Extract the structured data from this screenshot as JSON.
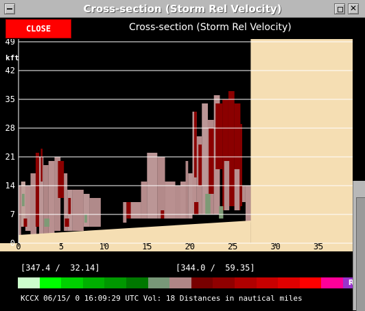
{
  "window": {
    "title": "Cross-section (Storm Rel Velocity)"
  },
  "toolbar": {
    "close_label": "CLOSE",
    "header_label": "Cross-section (Storm Rel Velocity)"
  },
  "chart_data": {
    "type": "heatmap",
    "y_unit_label": "kft",
    "y_ticks": [
      "0",
      "7",
      "14",
      "21",
      "28",
      "35",
      "42",
      "49"
    ],
    "x_ticks": [
      "0",
      "5",
      "10",
      "15",
      "20",
      "25",
      "30",
      "35"
    ],
    "xlim": [
      0,
      39
    ],
    "ylim": [
      0,
      49
    ],
    "data_extent_x": [
      0,
      27.1
    ],
    "grid": true,
    "legend": "bottom",
    "colors": {
      "background": "#000000",
      "no_data": "#f5deb3",
      "ground": "#f5deb3",
      "gridline": "#ffffff"
    },
    "cells": [
      {
        "x0": 0.0,
        "x1": 0.3,
        "y0": 2,
        "y1": 14,
        "c": "#b58a8a"
      },
      {
        "x0": 0.3,
        "x1": 0.8,
        "y0": 4,
        "y1": 15,
        "c": "#c0a09a"
      },
      {
        "x0": 0.4,
        "x1": 0.7,
        "y0": 9,
        "y1": 12,
        "c": "#7e9a76"
      },
      {
        "x0": 0.8,
        "x1": 1.4,
        "y0": 3,
        "y1": 14,
        "c": "#b99090"
      },
      {
        "x0": 1.4,
        "x1": 2.1,
        "y0": 2,
        "y1": 17,
        "c": "#b38a8a"
      },
      {
        "x0": 2.0,
        "x1": 2.4,
        "y0": 4,
        "y1": 22,
        "c": "#8b0000"
      },
      {
        "x0": 2.4,
        "x1": 2.9,
        "y0": 2,
        "y1": 21,
        "c": "#bb9595"
      },
      {
        "x0": 2.6,
        "x1": 2.8,
        "y0": 15,
        "y1": 23,
        "c": "#8b0000"
      },
      {
        "x0": 2.9,
        "x1": 3.5,
        "y0": 2,
        "y1": 19,
        "c": "#b08686"
      },
      {
        "x0": 3.5,
        "x1": 4.2,
        "y0": 2,
        "y1": 20,
        "c": "#b99090"
      },
      {
        "x0": 4.2,
        "x1": 4.9,
        "y0": 3,
        "y1": 21,
        "c": "#b38a8a"
      },
      {
        "x0": 4.6,
        "x1": 5.3,
        "y0": 11,
        "y1": 20,
        "c": "#8b0000"
      },
      {
        "x0": 5.3,
        "x1": 5.7,
        "y0": 3,
        "y1": 17,
        "c": "#b58c8c"
      },
      {
        "x0": 5.7,
        "x1": 6.3,
        "y0": 3,
        "y1": 13,
        "c": "#bb9696"
      },
      {
        "x0": 5.8,
        "x1": 6.1,
        "y0": 7,
        "y1": 11,
        "c": "#8b0000"
      },
      {
        "x0": 6.3,
        "x1": 7.6,
        "y0": 3,
        "y1": 13,
        "c": "#b58c8c"
      },
      {
        "x0": 7.6,
        "x1": 8.3,
        "y0": 4,
        "y1": 12,
        "c": "#bb9696"
      },
      {
        "x0": 8.3,
        "x1": 9.6,
        "y0": 4,
        "y1": 11,
        "c": "#b08a8a"
      },
      {
        "x0": 0.6,
        "x1": 1.0,
        "y0": 4,
        "y1": 6,
        "c": "#8b0000"
      },
      {
        "x0": 3.0,
        "x1": 3.6,
        "y0": 4,
        "y1": 6,
        "c": "#7e9a76"
      },
      {
        "x0": 5.4,
        "x1": 5.9,
        "y0": 4,
        "y1": 6,
        "c": "#8b0000"
      },
      {
        "x0": 7.7,
        "x1": 8.0,
        "y0": 5,
        "y1": 7,
        "c": "#7e9a76"
      },
      {
        "x0": 12.2,
        "x1": 12.6,
        "y0": 5,
        "y1": 10,
        "c": "#b58c8c"
      },
      {
        "x0": 12.6,
        "x1": 13.1,
        "y0": 6,
        "y1": 10,
        "c": "#8b0000"
      },
      {
        "x0": 13.1,
        "x1": 14.3,
        "y0": 6,
        "y1": 10,
        "c": "#b99090"
      },
      {
        "x0": 14.3,
        "x1": 15.0,
        "y0": 6,
        "y1": 15,
        "c": "#b58c8c"
      },
      {
        "x0": 15.0,
        "x1": 16.2,
        "y0": 6,
        "y1": 22,
        "c": "#bb9696"
      },
      {
        "x0": 16.2,
        "x1": 17.1,
        "y0": 6,
        "y1": 21,
        "c": "#b38a8a"
      },
      {
        "x0": 16.6,
        "x1": 17.0,
        "y0": 6,
        "y1": 8,
        "c": "#8b0000"
      },
      {
        "x0": 17.1,
        "x1": 18.3,
        "y0": 6,
        "y1": 15,
        "c": "#b99090"
      },
      {
        "x0": 18.3,
        "x1": 18.9,
        "y0": 6,
        "y1": 14,
        "c": "#b58c8c"
      },
      {
        "x0": 18.9,
        "x1": 19.5,
        "y0": 6,
        "y1": 15,
        "c": "#b99090"
      },
      {
        "x0": 19.5,
        "x1": 19.8,
        "y0": 6,
        "y1": 20,
        "c": "#b08686"
      },
      {
        "x0": 19.8,
        "x1": 20.3,
        "y0": 6,
        "y1": 17,
        "c": "#bb9696"
      },
      {
        "x0": 20.3,
        "x1": 20.8,
        "y0": 7,
        "y1": 32,
        "c": "#b99090"
      },
      {
        "x0": 20.5,
        "x1": 20.8,
        "y0": 16,
        "y1": 32,
        "c": "#8b0000"
      },
      {
        "x0": 20.8,
        "x1": 21.4,
        "y0": 7,
        "y1": 26,
        "c": "#b58c8c"
      },
      {
        "x0": 21.0,
        "x1": 21.4,
        "y0": 14,
        "y1": 24,
        "c": "#8b0000"
      },
      {
        "x0": 21.4,
        "x1": 22.1,
        "y0": 7,
        "y1": 34,
        "c": "#bb9696"
      },
      {
        "x0": 22.1,
        "x1": 22.8,
        "y0": 7,
        "y1": 30,
        "c": "#b38a8a"
      },
      {
        "x0": 22.2,
        "x1": 22.8,
        "y0": 12,
        "y1": 28,
        "c": "#8b0000"
      },
      {
        "x0": 22.8,
        "x1": 23.5,
        "y0": 7,
        "y1": 36,
        "c": "#b99090"
      },
      {
        "x0": 23.0,
        "x1": 23.8,
        "y0": 18,
        "y1": 34,
        "c": "#8b0000"
      },
      {
        "x0": 23.8,
        "x1": 24.5,
        "y0": 8,
        "y1": 35,
        "c": "#8b0000"
      },
      {
        "x0": 24.5,
        "x1": 25.2,
        "y0": 9,
        "y1": 37,
        "c": "#8b0000"
      },
      {
        "x0": 25.2,
        "x1": 25.9,
        "y0": 8,
        "y1": 34,
        "c": "#8b0000"
      },
      {
        "x0": 25.9,
        "x1": 26.1,
        "y0": 9,
        "y1": 29,
        "c": "#8b0000"
      },
      {
        "x0": 26.1,
        "x1": 26.5,
        "y0": 10,
        "y1": 14,
        "c": "#b58c8c"
      },
      {
        "x0": 26.5,
        "x1": 27.1,
        "y0": 5,
        "y1": 14,
        "c": "#b99090"
      },
      {
        "x0": 24.0,
        "x1": 24.6,
        "y0": 8,
        "y1": 20,
        "c": "#b58c8c"
      },
      {
        "x0": 25.2,
        "x1": 25.8,
        "y0": 8,
        "y1": 18,
        "c": "#b99090"
      },
      {
        "x0": 21.8,
        "x1": 22.4,
        "y0": 7,
        "y1": 12,
        "c": "#7e9a76"
      },
      {
        "x0": 23.4,
        "x1": 23.9,
        "y0": 6,
        "y1": 9,
        "c": "#7e9a76"
      },
      {
        "x0": 20.5,
        "x1": 21.0,
        "y0": 7,
        "y1": 10,
        "c": "#8b0000"
      }
    ],
    "ground_start_y": 2,
    "ground_end_y": 5.5
  },
  "coords": {
    "left": "[347.4 /  32.14]",
    "right": "[344.0 /  59.35]"
  },
  "colorbar": {
    "swatches": [
      {
        "color": "#ccffcc",
        "label": ""
      },
      {
        "color": "#00ff00",
        "label": ""
      },
      {
        "color": "#00d000",
        "label": ""
      },
      {
        "color": "#00b000",
        "label": ""
      },
      {
        "color": "#009800",
        "label": ""
      },
      {
        "color": "#007800",
        "label": ""
      },
      {
        "color": "#789878",
        "label": ""
      },
      {
        "color": "#b08686",
        "label": ""
      },
      {
        "color": "#780000",
        "label": ""
      },
      {
        "color": "#900000",
        "label": ""
      },
      {
        "color": "#b00000",
        "label": ""
      },
      {
        "color": "#c80000",
        "label": ""
      },
      {
        "color": "#e00000",
        "label": ""
      },
      {
        "color": "#ff0000",
        "label": ""
      },
      {
        "color": "#ff0099",
        "label": ""
      },
      {
        "color": "#9933cc",
        "label": "RF"
      }
    ]
  },
  "status": {
    "text": "KCCX 06/15/ 0 16:09:29 UTC Vol: 18 Distances in nautical miles"
  }
}
